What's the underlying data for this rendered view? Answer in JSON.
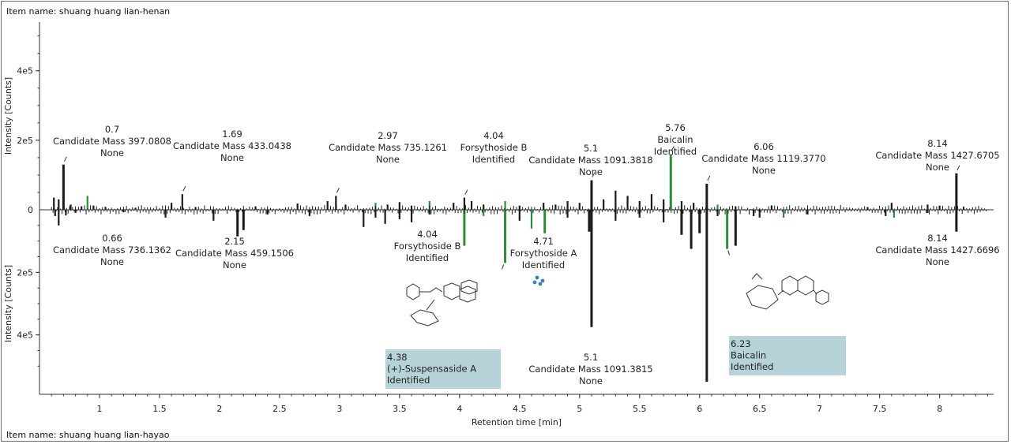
{
  "header": {
    "item_top": "Item name: shuang huang lian-henan"
  },
  "footer": {
    "item_bottom": "Item name: shuang huang lian-hayao"
  },
  "colors": {
    "black": "#1b1b1b",
    "green": "#2e8b3e",
    "highlight": "#b7d3da",
    "axis": "#333333"
  },
  "chart_data": {
    "type": "bar",
    "layout": "mirror",
    "xlabel": "Retention time [min]",
    "ylabel_top": "Intensity [Counts]",
    "ylabel_bottom": "Intensity [Counts]",
    "xlim": [
      0.5,
      8.45
    ],
    "ylim_top": [
      0,
      540000
    ],
    "ylim_bottom": [
      0,
      590000
    ],
    "x_ticks": [
      1,
      1.5,
      2,
      2.5,
      3,
      3.5,
      4,
      4.5,
      5,
      5.5,
      6,
      6.5,
      7,
      7.5,
      8
    ],
    "y_ticks_top": [
      {
        "value": 200000,
        "label": "2e5"
      },
      {
        "value": 400000,
        "label": "4e5"
      }
    ],
    "y_ticks_bottom": [
      {
        "value": 200000,
        "label": "2e5"
      },
      {
        "value": 400000,
        "label": "4e5"
      }
    ],
    "top_series": [
      {
        "x": 0.62,
        "y": 35000,
        "color": "black"
      },
      {
        "x": 0.66,
        "y": 30000,
        "color": "black"
      },
      {
        "x": 0.7,
        "y": 130000,
        "color": "black"
      },
      {
        "x": 0.76,
        "y": 15000,
        "color": "black"
      },
      {
        "x": 0.85,
        "y": 10000,
        "color": "black"
      },
      {
        "x": 0.9,
        "y": 40000,
        "color": "green"
      },
      {
        "x": 0.95,
        "y": 12000,
        "color": "black"
      },
      {
        "x": 1.05,
        "y": 8000,
        "color": "black"
      },
      {
        "x": 1.3,
        "y": 6000,
        "color": "black"
      },
      {
        "x": 1.6,
        "y": 20000,
        "color": "black"
      },
      {
        "x": 1.69,
        "y": 45000,
        "color": "black"
      },
      {
        "x": 1.8,
        "y": 8000,
        "color": "black"
      },
      {
        "x": 2.3,
        "y": 10000,
        "color": "black"
      },
      {
        "x": 2.65,
        "y": 18000,
        "color": "black"
      },
      {
        "x": 2.9,
        "y": 25000,
        "color": "black"
      },
      {
        "x": 2.97,
        "y": 40000,
        "color": "black"
      },
      {
        "x": 3.05,
        "y": 15000,
        "color": "black"
      },
      {
        "x": 3.3,
        "y": 20000,
        "color": "green"
      },
      {
        "x": 3.4,
        "y": 15000,
        "color": "black"
      },
      {
        "x": 3.5,
        "y": 22000,
        "color": "black"
      },
      {
        "x": 3.6,
        "y": 12000,
        "color": "black"
      },
      {
        "x": 3.75,
        "y": 25000,
        "color": "green"
      },
      {
        "x": 3.95,
        "y": 20000,
        "color": "black"
      },
      {
        "x": 4.04,
        "y": 35000,
        "color": "black"
      },
      {
        "x": 4.1,
        "y": 25000,
        "color": "black"
      },
      {
        "x": 4.2,
        "y": 15000,
        "color": "black"
      },
      {
        "x": 4.38,
        "y": 25000,
        "color": "green"
      },
      {
        "x": 4.5,
        "y": 12000,
        "color": "black"
      },
      {
        "x": 4.7,
        "y": 20000,
        "color": "black"
      },
      {
        "x": 4.8,
        "y": 15000,
        "color": "black"
      },
      {
        "x": 4.9,
        "y": 25000,
        "color": "black"
      },
      {
        "x": 5.0,
        "y": 20000,
        "color": "black"
      },
      {
        "x": 5.1,
        "y": 85000,
        "color": "black"
      },
      {
        "x": 5.2,
        "y": 30000,
        "color": "black"
      },
      {
        "x": 5.3,
        "y": 55000,
        "color": "black"
      },
      {
        "x": 5.4,
        "y": 40000,
        "color": "black"
      },
      {
        "x": 5.5,
        "y": 25000,
        "color": "black"
      },
      {
        "x": 5.6,
        "y": 45000,
        "color": "black"
      },
      {
        "x": 5.7,
        "y": 30000,
        "color": "black"
      },
      {
        "x": 5.76,
        "y": 160000,
        "color": "green"
      },
      {
        "x": 5.85,
        "y": 25000,
        "color": "black"
      },
      {
        "x": 5.95,
        "y": 20000,
        "color": "black"
      },
      {
        "x": 6.06,
        "y": 75000,
        "color": "black"
      },
      {
        "x": 6.15,
        "y": 15000,
        "color": "green"
      },
      {
        "x": 6.3,
        "y": 10000,
        "color": "black"
      },
      {
        "x": 6.6,
        "y": 12000,
        "color": "black"
      },
      {
        "x": 7.4,
        "y": 8000,
        "color": "black"
      },
      {
        "x": 7.6,
        "y": 20000,
        "color": "black"
      },
      {
        "x": 7.9,
        "y": 15000,
        "color": "black"
      },
      {
        "x": 8.0,
        "y": 12000,
        "color": "black"
      },
      {
        "x": 8.14,
        "y": 105000,
        "color": "black"
      },
      {
        "x": 8.2,
        "y": 8000,
        "color": "black"
      }
    ],
    "bottom_series": [
      {
        "x": 0.63,
        "y": 20000,
        "color": "black"
      },
      {
        "x": 0.66,
        "y": 50000,
        "color": "black"
      },
      {
        "x": 0.72,
        "y": 18000,
        "color": "black"
      },
      {
        "x": 0.8,
        "y": 10000,
        "color": "black"
      },
      {
        "x": 1.2,
        "y": 8000,
        "color": "black"
      },
      {
        "x": 1.55,
        "y": 25000,
        "color": "black"
      },
      {
        "x": 1.95,
        "y": 35000,
        "color": "black"
      },
      {
        "x": 2.15,
        "y": 85000,
        "color": "black"
      },
      {
        "x": 2.2,
        "y": 65000,
        "color": "black"
      },
      {
        "x": 2.4,
        "y": 15000,
        "color": "black"
      },
      {
        "x": 2.75,
        "y": 20000,
        "color": "black"
      },
      {
        "x": 3.2,
        "y": 55000,
        "color": "black"
      },
      {
        "x": 3.3,
        "y": 25000,
        "color": "black"
      },
      {
        "x": 3.38,
        "y": 45000,
        "color": "black"
      },
      {
        "x": 3.5,
        "y": 30000,
        "color": "black"
      },
      {
        "x": 3.6,
        "y": 40000,
        "color": "black"
      },
      {
        "x": 3.75,
        "y": 15000,
        "color": "black"
      },
      {
        "x": 4.04,
        "y": 115000,
        "color": "green"
      },
      {
        "x": 4.2,
        "y": 20000,
        "color": "green"
      },
      {
        "x": 4.38,
        "y": 170000,
        "color": "green"
      },
      {
        "x": 4.5,
        "y": 35000,
        "color": "black"
      },
      {
        "x": 4.6,
        "y": 60000,
        "color": "green"
      },
      {
        "x": 4.71,
        "y": 75000,
        "color": "green"
      },
      {
        "x": 4.9,
        "y": 25000,
        "color": "black"
      },
      {
        "x": 5.1,
        "y": 375000,
        "color": "black"
      },
      {
        "x": 5.08,
        "y": 70000,
        "color": "black"
      },
      {
        "x": 5.3,
        "y": 35000,
        "color": "black"
      },
      {
        "x": 5.5,
        "y": 25000,
        "color": "black"
      },
      {
        "x": 5.7,
        "y": 40000,
        "color": "black"
      },
      {
        "x": 5.85,
        "y": 80000,
        "color": "black"
      },
      {
        "x": 5.93,
        "y": 125000,
        "color": "black"
      },
      {
        "x": 6.0,
        "y": 75000,
        "color": "black"
      },
      {
        "x": 6.06,
        "y": 550000,
        "color": "black"
      },
      {
        "x": 6.15,
        "y": 20000,
        "color": "black"
      },
      {
        "x": 6.23,
        "y": 125000,
        "color": "green"
      },
      {
        "x": 6.3,
        "y": 115000,
        "color": "black"
      },
      {
        "x": 6.45,
        "y": 20000,
        "color": "black"
      },
      {
        "x": 6.5,
        "y": 25000,
        "color": "black"
      },
      {
        "x": 6.7,
        "y": 25000,
        "color": "green"
      },
      {
        "x": 6.9,
        "y": 15000,
        "color": "black"
      },
      {
        "x": 7.55,
        "y": 20000,
        "color": "black"
      },
      {
        "x": 7.62,
        "y": 25000,
        "color": "green"
      },
      {
        "x": 7.9,
        "y": 10000,
        "color": "black"
      },
      {
        "x": 8.14,
        "y": 70000,
        "color": "black"
      }
    ],
    "annotations_top": [
      {
        "x": 0.7,
        "y": 130000,
        "lines": [
          "0.7",
          "Candidate Mass 397.0808",
          "None"
        ]
      },
      {
        "x": 1.69,
        "y": 45000,
        "lines": [
          "1.69",
          "Candidate Mass 433.0438",
          "None"
        ]
      },
      {
        "x": 2.97,
        "y": 40000,
        "lines": [
          "2.97",
          "Candidate Mass 735.1261",
          "None"
        ]
      },
      {
        "x": 4.04,
        "y": 35000,
        "lines": [
          "4.04",
          "Forsythoside B",
          "Identified"
        ]
      },
      {
        "x": 5.1,
        "y": 85000,
        "lines": [
          "5.1",
          "Candidate Mass 1091.3818",
          "None"
        ]
      },
      {
        "x": 5.76,
        "y": 160000,
        "lines": [
          "5.76",
          "Baicalin",
          "Identified"
        ]
      },
      {
        "x": 6.06,
        "y": 75000,
        "lines": [
          "6.06",
          "Candidate Mass 1119.3770",
          "None"
        ]
      },
      {
        "x": 8.14,
        "y": 105000,
        "lines": [
          "8.14",
          "Candidate Mass 1427.6705",
          "None"
        ]
      }
    ],
    "annotations_bottom": [
      {
        "x": 0.66,
        "y": 50000,
        "lines": [
          "0.66",
          "Candidate Mass 736.1362",
          "None"
        ]
      },
      {
        "x": 2.15,
        "y": 85000,
        "lines": [
          "2.15",
          "Candidate Mass 459.1506",
          "None"
        ]
      },
      {
        "x": 4.04,
        "y": 115000,
        "lines": [
          "4.04",
          "Forsythoside B",
          "Identified"
        ]
      },
      {
        "x": 4.71,
        "y": 75000,
        "lines": [
          "4.71",
          "Forsythoside A",
          "Identified"
        ]
      },
      {
        "x": 5.1,
        "y": 375000,
        "lines": [
          "5.1",
          "Candidate Mass 1091.3815",
          "None"
        ]
      },
      {
        "x": 8.14,
        "y": 70000,
        "lines": [
          "8.14",
          "Candidate Mass 1427.6696",
          "None"
        ]
      }
    ],
    "highlighted_annotations": [
      {
        "x": 4.38,
        "lines": [
          "4.38",
          "(+)-Suspensaside A",
          "Identified"
        ]
      },
      {
        "x": 6.23,
        "lines": [
          "6.23",
          "Baicalin",
          "Identified"
        ]
      }
    ]
  }
}
